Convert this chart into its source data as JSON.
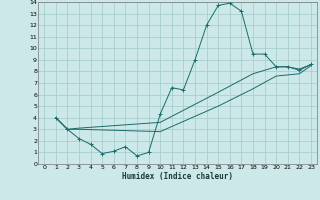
{
  "xlabel": "Humidex (Indice chaleur)",
  "bg_color": "#cce8e8",
  "grid_color": "#aacece",
  "line_color": "#1a6b6b",
  "xlim": [
    -0.5,
    23.5
  ],
  "ylim": [
    0,
    14
  ],
  "xticks": [
    0,
    1,
    2,
    3,
    4,
    5,
    6,
    7,
    8,
    9,
    10,
    11,
    12,
    13,
    14,
    15,
    16,
    17,
    18,
    19,
    20,
    21,
    22,
    23
  ],
  "yticks": [
    0,
    1,
    2,
    3,
    4,
    5,
    6,
    7,
    8,
    9,
    10,
    11,
    12,
    13,
    14
  ],
  "series1_x": [
    1,
    2,
    3,
    4,
    5,
    6,
    7,
    8,
    9,
    10,
    11,
    12,
    13,
    14,
    15,
    16,
    17,
    18,
    19,
    20,
    21,
    22,
    23
  ],
  "series1_y": [
    4.0,
    3.0,
    2.2,
    1.7,
    0.9,
    1.1,
    1.5,
    0.7,
    1.0,
    4.3,
    6.6,
    6.4,
    9.0,
    12.0,
    13.7,
    13.9,
    13.2,
    9.5,
    9.5,
    8.4,
    8.4,
    8.1,
    8.6
  ],
  "series2_x": [
    1,
    2,
    3,
    10,
    15,
    18,
    20,
    21,
    22,
    23
  ],
  "series2_y": [
    4.0,
    3.0,
    3.1,
    3.6,
    6.2,
    7.8,
    8.4,
    8.4,
    8.2,
    8.6
  ],
  "series3_x": [
    1,
    2,
    3,
    10,
    15,
    18,
    20,
    21,
    22,
    23
  ],
  "series3_y": [
    4.0,
    3.0,
    3.0,
    2.8,
    5.0,
    6.5,
    7.6,
    7.7,
    7.8,
    8.5
  ]
}
